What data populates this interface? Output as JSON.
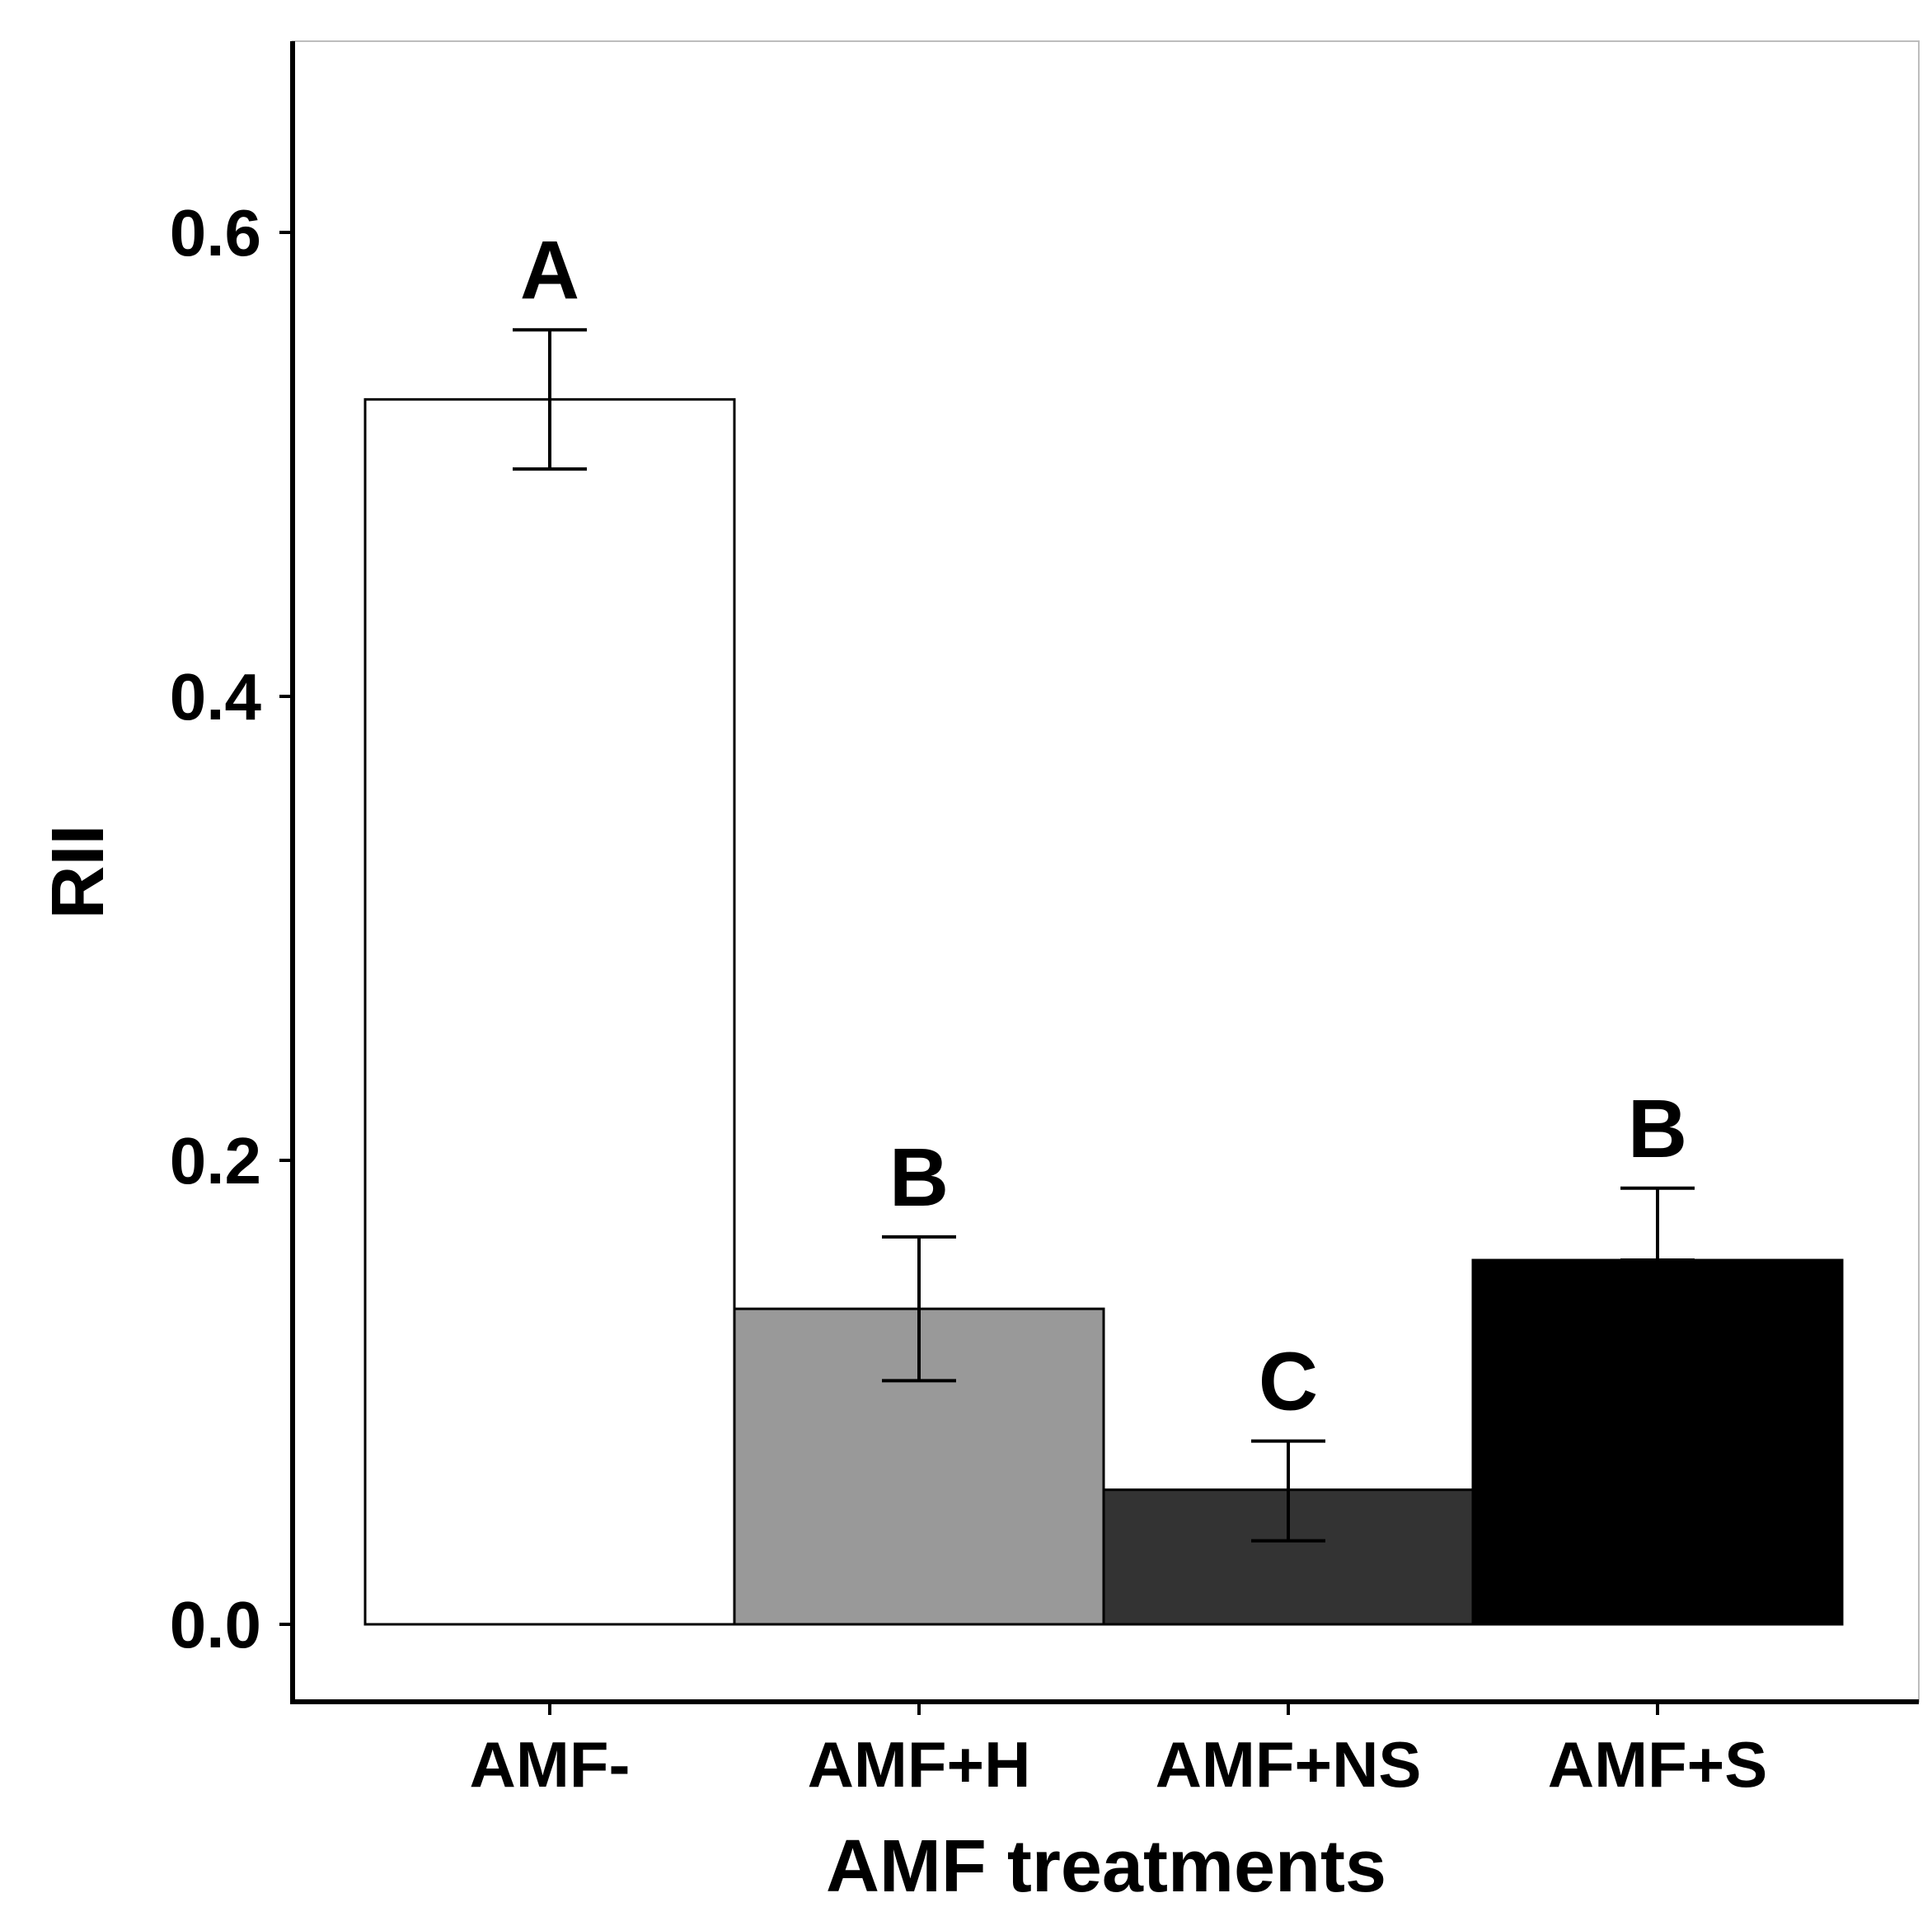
{
  "chart_data": {
    "type": "bar",
    "xlabel": "AMF treatments",
    "ylabel": "RII",
    "ylim": [
      -0.035,
      0.685
    ],
    "yticks": [
      0.0,
      0.2,
      0.4,
      0.6
    ],
    "ytick_labels": [
      "0.0",
      "0.2",
      "0.4",
      "0.6"
    ],
    "categories": [
      "AMF-",
      "AMF+H",
      "AMF+NS",
      "AMF+S"
    ],
    "values": [
      0.528,
      0.136,
      0.058,
      0.157
    ],
    "error_low": [
      0.498,
      0.105,
      0.036,
      0.157
    ],
    "error_high": [
      0.558,
      0.167,
      0.079,
      0.188
    ],
    "significance_labels": [
      "A",
      "B",
      "C",
      "B"
    ],
    "bar_colors": [
      "#ffffff",
      "#999999",
      "#333333",
      "#000000"
    ],
    "grid": false,
    "legend": "none"
  }
}
